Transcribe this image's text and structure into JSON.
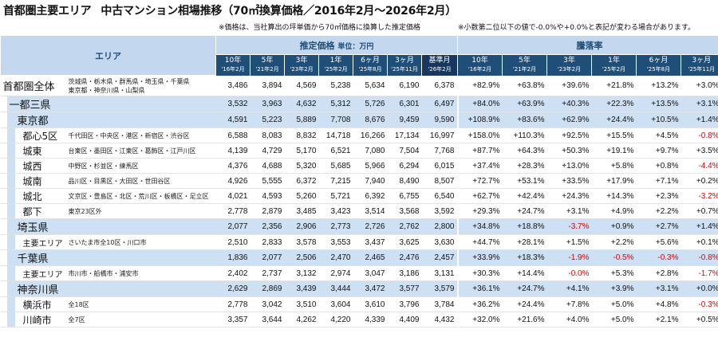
{
  "title": "首都圏主要エリア　中古マンション相場推移（70㎡換算価格／2016年2月～2026年2月）",
  "title_main": "首都圏主要エリア",
  "title_sub": "中古マンション相場推移（70㎡換算価格／2016年2月～2026年2月）",
  "notes": [
    "※価格は、当社算出の坪単価から70㎡価格に換算した推定価格",
    "※小数第二位以下の値で-0.0%や+0.0%と表記が変わる場合があります。"
  ],
  "header": {
    "area_label": "エリア",
    "price_label": "推定価格",
    "price_unit": "単位：万円",
    "change_label": "騰落率",
    "price_cols": [
      {
        "label": "10年",
        "date": "'16年2月"
      },
      {
        "label": "5年",
        "date": "'21年2月"
      },
      {
        "label": "3年",
        "date": "'23年2月"
      },
      {
        "label": "1年",
        "date": "'25年2月"
      },
      {
        "label": "6ヶ月",
        "date": "'25年8月"
      },
      {
        "label": "3ヶ月",
        "date": "'25年11月"
      },
      {
        "label": "基準月",
        "date": "'26年2月"
      }
    ],
    "change_cols": [
      {
        "label": "10年",
        "date": "'16年2月"
      },
      {
        "label": "5年",
        "date": "'21年2月"
      },
      {
        "label": "3年",
        "date": "'23年2月"
      },
      {
        "label": "1年",
        "date": "'25年2月"
      },
      {
        "label": "6ヶ月",
        "date": "'25年8月"
      },
      {
        "label": "3ヶ月",
        "date": "'25年11月"
      }
    ]
  },
  "rows": [
    {
      "name": "首都圏全体",
      "sub": "茨城県・栃木県・群馬県・埼玉県・千葉県\n東京都・神奈川県・山梨県",
      "level": 0,
      "prices": [
        "3,486",
        "3,894",
        "4,569",
        "5,238",
        "5,634",
        "6,190",
        "6,378"
      ],
      "changes": [
        "+82.9%",
        "+63.8%",
        "+39.6%",
        "+21.8%",
        "+13.2%",
        "+3.0%"
      ]
    },
    {
      "name": "一都三県",
      "sub": "",
      "level": 1,
      "prices": [
        "3,532",
        "3,963",
        "4,632",
        "5,312",
        "5,726",
        "6,301",
        "6,497"
      ],
      "changes": [
        "+84.0%",
        "+63.9%",
        "+40.3%",
        "+22.3%",
        "+13.5%",
        "+3.1%"
      ]
    },
    {
      "name": "東京都",
      "sub": "",
      "level": 2,
      "prices": [
        "4,591",
        "5,223",
        "5,889",
        "7,708",
        "8,676",
        "9,459",
        "9,590"
      ],
      "changes": [
        "+108.9%",
        "+83.6%",
        "+62.9%",
        "+24.4%",
        "+10.5%",
        "+1.4%"
      ]
    },
    {
      "name": "都心5区",
      "sub": "千代田区・中央区・港区・新宿区・渋谷区",
      "level": 3,
      "prices": [
        "6,588",
        "8,083",
        "8,832",
        "14,718",
        "16,266",
        "17,134",
        "16,997"
      ],
      "changes": [
        "+158.0%",
        "+110.3%",
        "+92.5%",
        "+15.5%",
        "+4.5%",
        "-0.8%"
      ]
    },
    {
      "name": "城東",
      "sub": "台東区・墨田区・江東区・葛飾区・江戸川区",
      "level": 3,
      "prices": [
        "4,139",
        "4,729",
        "5,170",
        "6,521",
        "7,080",
        "7,504",
        "7,768"
      ],
      "changes": [
        "+87.7%",
        "+64.3%",
        "+50.3%",
        "+19.1%",
        "+9.7%",
        "+3.5%"
      ]
    },
    {
      "name": "城西",
      "sub": "中野区・杉並区・練馬区",
      "level": 3,
      "prices": [
        "4,376",
        "4,688",
        "5,320",
        "5,685",
        "5,966",
        "6,294",
        "6,015"
      ],
      "changes": [
        "+37.4%",
        "+28.3%",
        "+13.0%",
        "+5.8%",
        "+0.8%",
        "-4.4%"
      ]
    },
    {
      "name": "城南",
      "sub": "品川区・目黒区・大田区・世田谷区",
      "level": 3,
      "prices": [
        "4,926",
        "5,555",
        "6,372",
        "7,215",
        "7,940",
        "8,490",
        "8,507"
      ],
      "changes": [
        "+72.7%",
        "+53.1%",
        "+33.5%",
        "+17.9%",
        "+7.1%",
        "+0.2%"
      ]
    },
    {
      "name": "城北",
      "sub": "文京区・豊島区・北区・荒川区・板橋区・足立区",
      "level": 3,
      "prices": [
        "4,021",
        "4,593",
        "5,260",
        "5,721",
        "6,392",
        "6,755",
        "6,540"
      ],
      "changes": [
        "+62.7%",
        "+42.4%",
        "+24.3%",
        "+14.3%",
        "+2.3%",
        "-3.2%"
      ]
    },
    {
      "name": "都下",
      "sub": "東京23区外",
      "level": 3,
      "prices": [
        "2,778",
        "2,879",
        "3,485",
        "3,423",
        "3,514",
        "3,568",
        "3,592"
      ],
      "changes": [
        "+29.3%",
        "+24.7%",
        "+3.1%",
        "+4.9%",
        "+2.2%",
        "+0.7%"
      ]
    },
    {
      "name": "埼玉県",
      "sub": "",
      "level": 2,
      "prices": [
        "2,077",
        "2,356",
        "2,906",
        "2,773",
        "2,726",
        "2,762",
        "2,800"
      ],
      "changes": [
        "+34.8%",
        "+18.8%",
        "-3.7%",
        "+0.9%",
        "+2.7%",
        "+1.4%"
      ]
    },
    {
      "name": "主要エリア",
      "sub": "さいたま市全10区・川口市",
      "level": 3,
      "prices": [
        "2,510",
        "2,833",
        "3,578",
        "3,553",
        "3,437",
        "3,625",
        "3,630"
      ],
      "changes": [
        "+44.7%",
        "+28.1%",
        "+1.5%",
        "+2.2%",
        "+5.6%",
        "+0.1%"
      ]
    },
    {
      "name": "千葉県",
      "sub": "",
      "level": 2,
      "prices": [
        "1,836",
        "2,077",
        "2,506",
        "2,470",
        "2,465",
        "2,476",
        "2,457"
      ],
      "changes": [
        "+33.9%",
        "+18.3%",
        "-1.9%",
        "-0.5%",
        "-0.3%",
        "-0.8%"
      ]
    },
    {
      "name": "主要エリア",
      "sub": "市川市・船橋市・浦安市",
      "level": 3,
      "prices": [
        "2,402",
        "2,737",
        "3,132",
        "2,974",
        "3,047",
        "3,186",
        "3,131"
      ],
      "changes": [
        "+30.3%",
        "+14.4%",
        "-0.0%",
        "+5.3%",
        "+2.8%",
        "-1.7%"
      ]
    },
    {
      "name": "神奈川県",
      "sub": "",
      "level": 2,
      "prices": [
        "2,629",
        "2,869",
        "3,439",
        "3,444",
        "3,472",
        "3,577",
        "3,579"
      ],
      "changes": [
        "+36.1%",
        "+24.7%",
        "+4.1%",
        "+3.9%",
        "+3.1%",
        "+0.0%"
      ]
    },
    {
      "name": "横浜市",
      "sub": "全18区",
      "level": 3,
      "prices": [
        "2,778",
        "3,042",
        "3,510",
        "3,604",
        "3,610",
        "3,796",
        "3,784"
      ],
      "changes": [
        "+36.2%",
        "+24.4%",
        "+7.8%",
        "+5.0%",
        "+4.8%",
        "-0.3%"
      ]
    },
    {
      "name": "川崎市",
      "sub": "全7区",
      "level": 3,
      "prices": [
        "3,357",
        "3,644",
        "4,262",
        "4,220",
        "4,339",
        "4,409",
        "4,432"
      ],
      "changes": [
        "+32.0%",
        "+21.6%",
        "+4.0%",
        "+5.0%",
        "+2.1%",
        "+0.5%"
      ]
    }
  ],
  "colors": {
    "header_dark": "#1f4e79",
    "header_light": "#c3d7ee",
    "band": "#cde0f4",
    "negative": "#e00000"
  }
}
